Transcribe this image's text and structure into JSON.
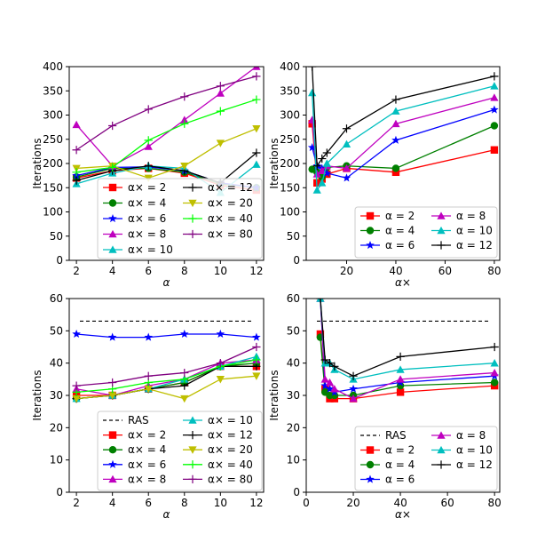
{
  "chart_data": [
    {
      "type": "line",
      "panel": "top-left",
      "xlabel": "α",
      "ylabel": "Iterations",
      "xlim": [
        1.6,
        12.4
      ],
      "ylim": [
        0,
        400
      ],
      "xticks": [
        2,
        4,
        6,
        8,
        10,
        12
      ],
      "yticks": [
        0,
        50,
        100,
        150,
        200,
        250,
        300,
        350,
        400
      ],
      "x": [
        2,
        4,
        6,
        8,
        10,
        12
      ],
      "legend_position": "lower-right",
      "legend_columns": 2,
      "series": [
        {
          "name": "α× = 2",
          "color": "#ff0000",
          "marker": "square",
          "values": [
            170,
            185,
            190,
            180,
            155,
            145
          ]
        },
        {
          "name": "α× = 4",
          "color": "#008000",
          "marker": "circle",
          "values": [
            172,
            190,
            190,
            182,
            158,
            150
          ]
        },
        {
          "name": "α× = 6",
          "color": "#0000ff",
          "marker": "star",
          "values": [
            175,
            192,
            193,
            185,
            160,
            150
          ]
        },
        {
          "name": "α× = 8",
          "color": "#bf00bf",
          "marker": "triangle-up",
          "values": [
            280,
            195,
            235,
            290,
            345,
            400
          ]
        },
        {
          "name": "α× = 10",
          "color": "#00bfbf",
          "marker": "triangle-up",
          "values": [
            158,
            180,
            195,
            190,
            140,
            198
          ]
        },
        {
          "name": "α× = 12",
          "color": "#000000",
          "marker": "plus",
          "values": [
            165,
            185,
            195,
            185,
            160,
            222
          ]
        },
        {
          "name": "α× = 20",
          "color": "#bfbf00",
          "marker": "triangle-down",
          "values": [
            190,
            195,
            170,
            195,
            242,
            272
          ]
        },
        {
          "name": "α× = 40",
          "color": "#00ff00",
          "marker": "plus",
          "values": [
            182,
            192,
            248,
            282,
            308,
            332
          ]
        },
        {
          "name": "α× = 80",
          "color": "#800080",
          "marker": "plus",
          "values": [
            228,
            278,
            312,
            338,
            360,
            380
          ]
        }
      ]
    },
    {
      "type": "line",
      "panel": "top-right",
      "xlabel": "α×",
      "ylabel": "Iterations",
      "xlim": [
        3.6,
        82.2
      ],
      "ylim": [
        0,
        400
      ],
      "xticks": [
        20,
        40,
        60,
        80
      ],
      "yticks": [
        0,
        50,
        100,
        150,
        200,
        250,
        300,
        350,
        400
      ],
      "x": [
        6,
        8,
        10,
        12,
        20,
        40,
        80
      ],
      "legend_position": "lower-right",
      "legend_columns": 2,
      "series": [
        {
          "name": "α = 2",
          "color": "#ff0000",
          "marker": "square",
          "values": [
            282,
            160,
            168,
            178,
            190,
            182,
            228
          ]
        },
        {
          "name": "α = 4",
          "color": "#008000",
          "marker": "circle",
          "values": [
            188,
            182,
            172,
            192,
            195,
            190,
            278
          ]
        },
        {
          "name": "α = 6",
          "color": "#0000ff",
          "marker": "star",
          "values": [
            233,
            195,
            190,
            180,
            170,
            248,
            311
          ]
        },
        {
          "name": "α = 8",
          "color": "#bf00bf",
          "marker": "triangle-up",
          "values": [
            290,
            178,
            185,
            195,
            190,
            282,
            336
          ]
        },
        {
          "name": "α = 10",
          "color": "#00bfbf",
          "marker": "triangle-up",
          "values": [
            346,
            145,
            160,
            200,
            240,
            308,
            360
          ]
        },
        {
          "name": "α = 12",
          "color": "#000000",
          "marker": "plus",
          "values": [
            400,
            195,
            210,
            222,
            272,
            332,
            380
          ]
        }
      ]
    },
    {
      "type": "line",
      "panel": "bottom-left",
      "xlabel": "α",
      "ylabel": "Iterations",
      "xlim": [
        1.6,
        12.4
      ],
      "ylim": [
        0,
        60
      ],
      "xticks": [
        2,
        4,
        6,
        8,
        10,
        12
      ],
      "yticks": [
        0,
        10,
        20,
        30,
        40,
        50,
        60
      ],
      "x": [
        2,
        4,
        6,
        8,
        10,
        12
      ],
      "legend_position": "lower-right",
      "legend_columns": 2,
      "reference": {
        "name": "RAS",
        "value": 53,
        "style": "dashed",
        "color": "#000000"
      },
      "series": [
        {
          "name": "α× = 2",
          "color": "#ff0000",
          "marker": "square",
          "values": [
            30,
            30,
            32,
            34,
            39,
            39
          ]
        },
        {
          "name": "α× = 4",
          "color": "#008000",
          "marker": "circle",
          "values": [
            29,
            30,
            32,
            34,
            39,
            40
          ]
        },
        {
          "name": "α× = 6",
          "color": "#0000ff",
          "marker": "star",
          "values": [
            49,
            48,
            48,
            49,
            49,
            48
          ]
        },
        {
          "name": "α× = 8",
          "color": "#bf00bf",
          "marker": "triangle-up",
          "values": [
            32,
            30,
            33,
            35,
            40,
            41
          ]
        },
        {
          "name": "α× = 10",
          "color": "#00bfbf",
          "marker": "triangle-up",
          "values": [
            29,
            30,
            32,
            35,
            39,
            42
          ]
        },
        {
          "name": "α× = 12",
          "color": "#000000",
          "marker": "plus",
          "values": [
            29,
            30,
            32,
            33,
            39,
            39
          ]
        },
        {
          "name": "α× = 20",
          "color": "#bfbf00",
          "marker": "triangle-down",
          "values": [
            29,
            30,
            32,
            29,
            35,
            36
          ]
        },
        {
          "name": "α× = 40",
          "color": "#00ff00",
          "marker": "plus",
          "values": [
            31,
            32,
            34,
            35,
            39,
            41
          ]
        },
        {
          "name": "α× = 80",
          "color": "#800080",
          "marker": "plus",
          "values": [
            33,
            34,
            36,
            37,
            40,
            45
          ]
        }
      ]
    },
    {
      "type": "line",
      "panel": "bottom-right",
      "xlabel": "α×",
      "ylabel": "Iterations",
      "xlim": [
        0,
        82.2
      ],
      "ylim": [
        0,
        60
      ],
      "xticks": [
        0,
        20,
        40,
        60,
        80
      ],
      "yticks": [
        0,
        10,
        20,
        30,
        40,
        50,
        60
      ],
      "x": [
        6,
        8,
        10,
        12,
        20,
        40,
        80
      ],
      "legend_position": "lower-right",
      "legend_columns": 2,
      "reference": {
        "name": "RAS",
        "value": 53,
        "style": "dashed",
        "color": "#000000"
      },
      "series": [
        {
          "name": "α = 2",
          "color": "#ff0000",
          "marker": "square",
          "values": [
            49,
            32,
            29,
            29,
            29,
            31,
            33
          ]
        },
        {
          "name": "α = 4",
          "color": "#008000",
          "marker": "circle",
          "values": [
            48,
            31,
            30,
            30,
            30,
            33,
            34
          ]
        },
        {
          "name": "α = 6",
          "color": "#0000ff",
          "marker": "star",
          "values": [
            60,
            33,
            32,
            31,
            32,
            34,
            36
          ]
        },
        {
          "name": "α = 8",
          "color": "#bf00bf",
          "marker": "triangle-up",
          "values": [
            60,
            35,
            34,
            32,
            29,
            35,
            37
          ]
        },
        {
          "name": "α = 10",
          "color": "#00bfbf",
          "marker": "triangle-up",
          "values": [
            60,
            40,
            40,
            38,
            35,
            38,
            40
          ]
        },
        {
          "name": "α = 12",
          "color": "#000000",
          "marker": "plus",
          "values": [
            60,
            41,
            40,
            39,
            36,
            42,
            45
          ]
        }
      ]
    }
  ]
}
